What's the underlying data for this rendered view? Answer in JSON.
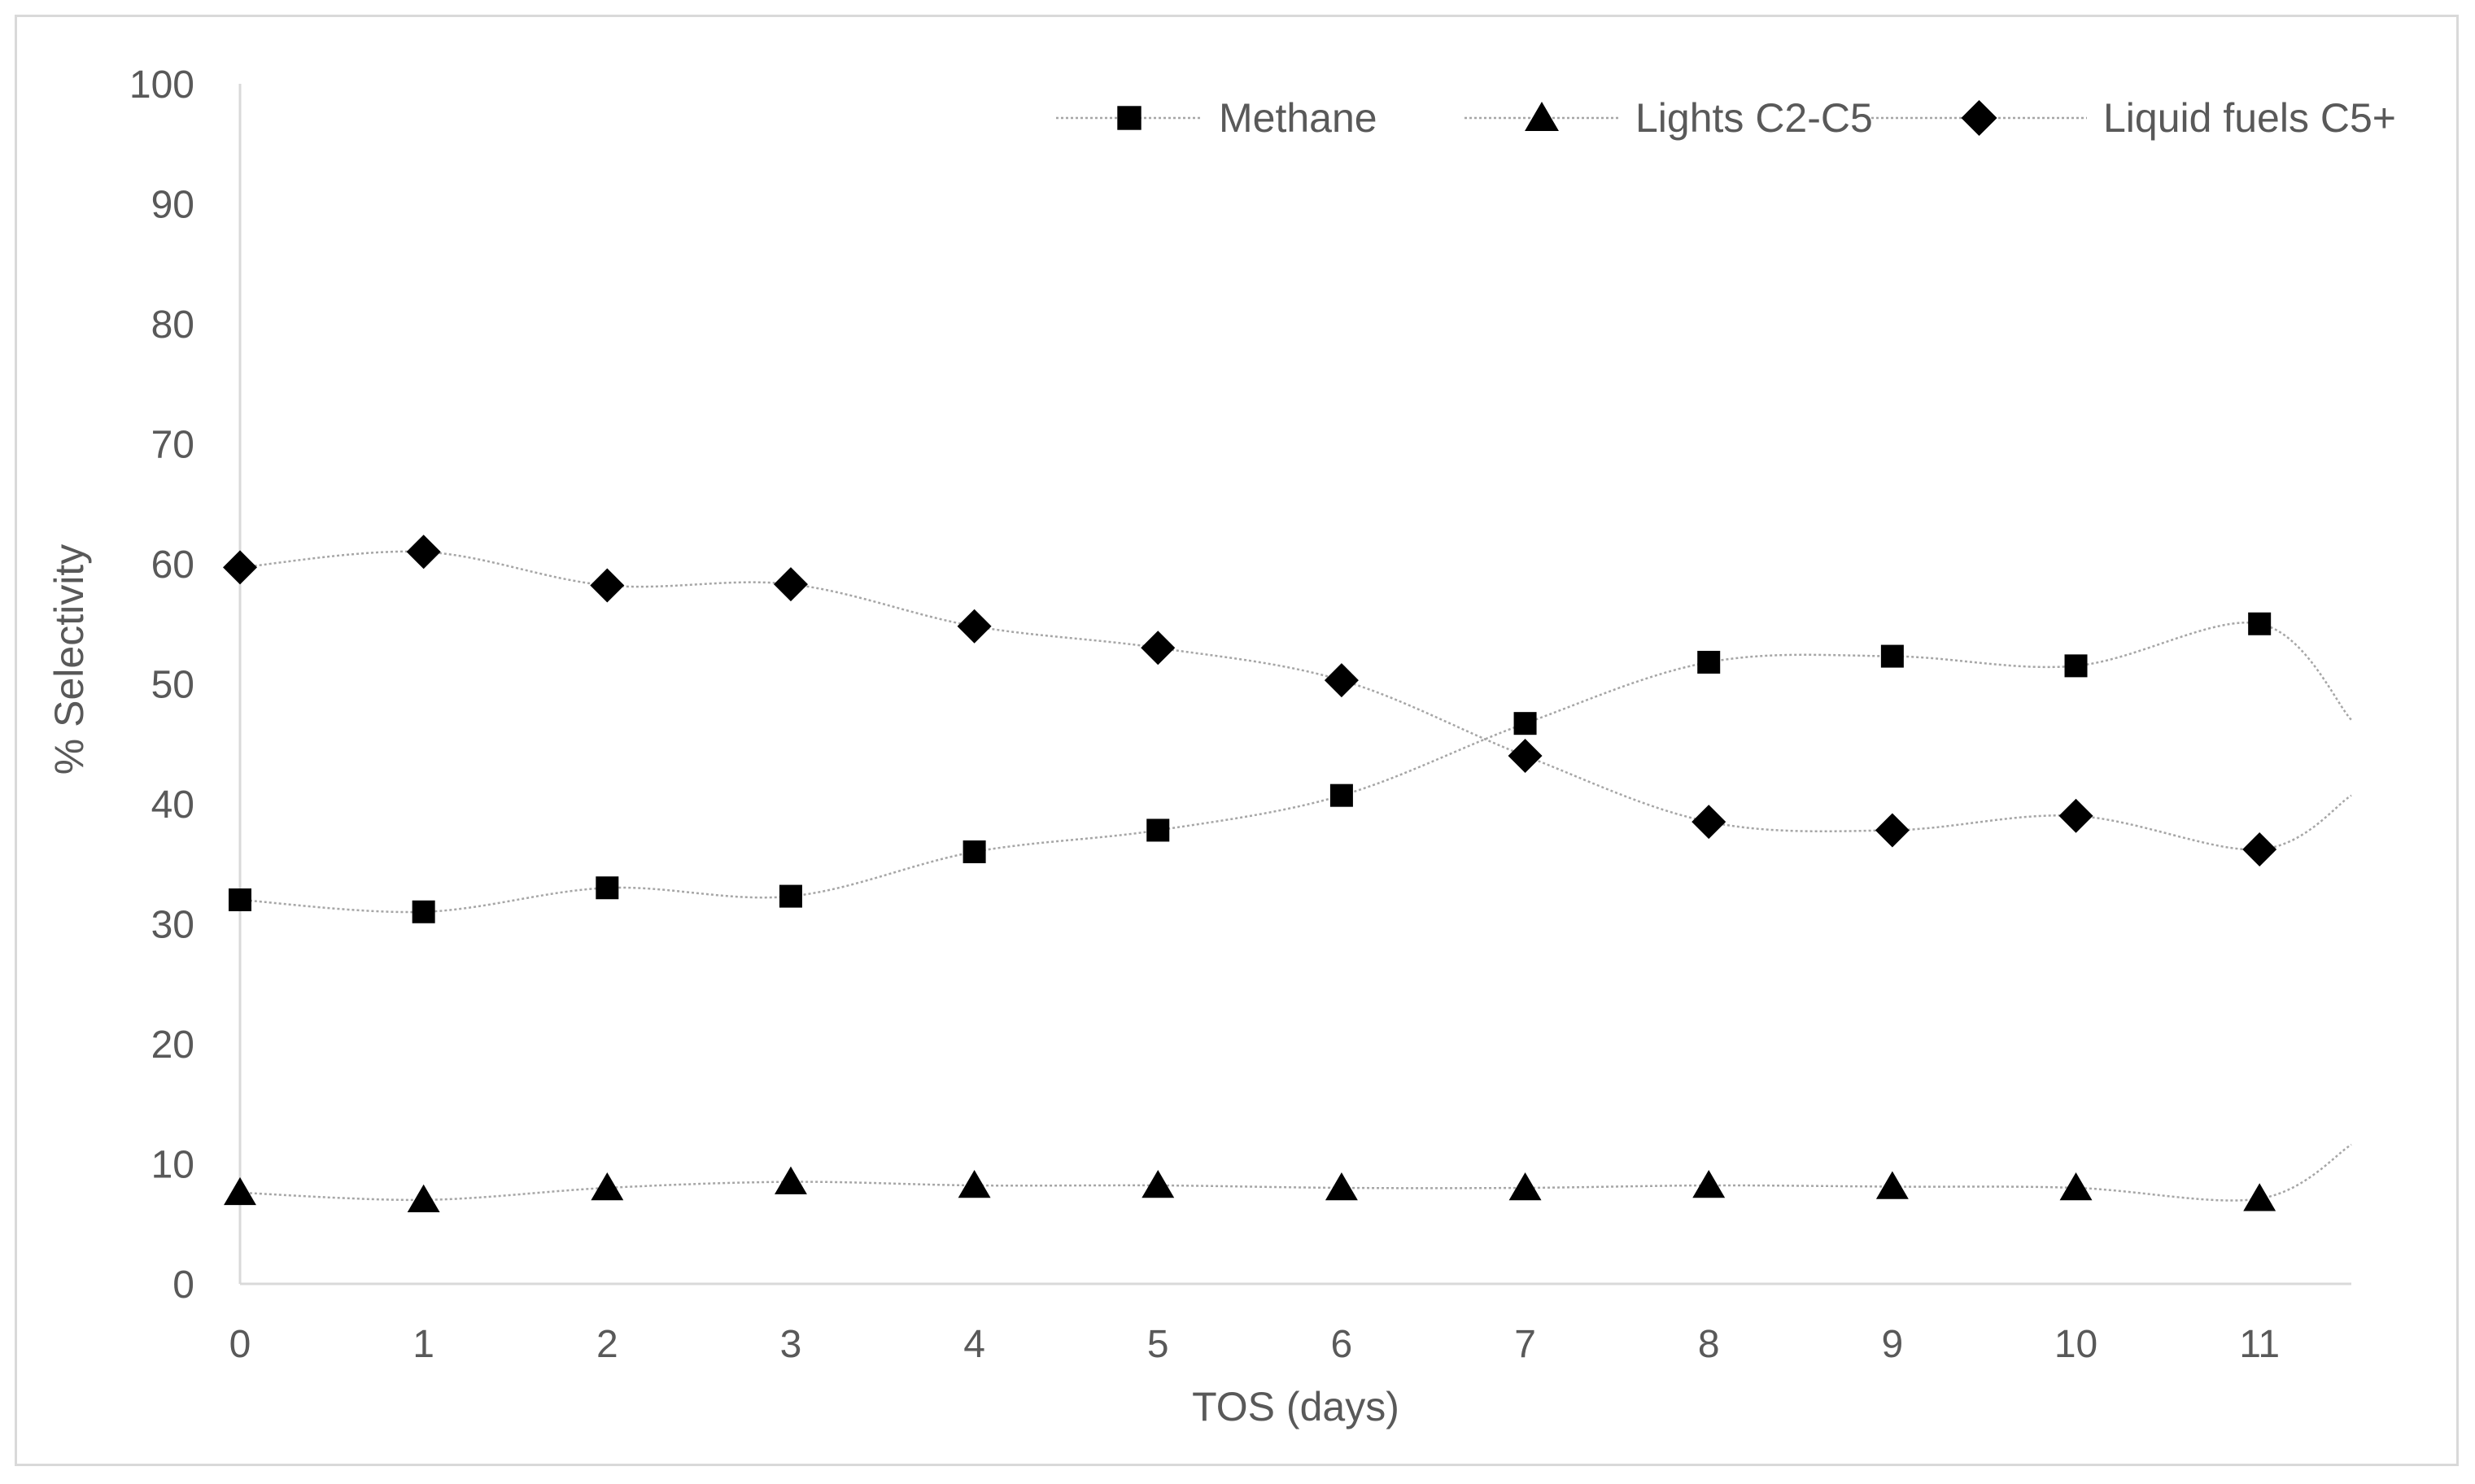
{
  "chart_data": {
    "type": "line",
    "title": "",
    "xlabel": "TOS (days)",
    "ylabel": "% Selectivity",
    "x": [
      0,
      1,
      2,
      3,
      4,
      5,
      6,
      7,
      8,
      9,
      10,
      11
    ],
    "x_ticks": [
      "0",
      "1",
      "2",
      "3",
      "4",
      "5",
      "6",
      "7",
      "8",
      "9",
      "10",
      "11"
    ],
    "y_ticks": [
      "0",
      "10",
      "20",
      "30",
      "40",
      "50",
      "60",
      "70",
      "80",
      "90",
      "100"
    ],
    "xlim": [
      0,
      11.5
    ],
    "ylim": [
      0,
      100
    ],
    "grid": false,
    "legend_position": "top-right",
    "line_color": "#a6a6a6",
    "marker_color": "#000000",
    "series": [
      {
        "name": "Methane",
        "marker": "square",
        "values": [
          32,
          31,
          33,
          32.3,
          36,
          37.8,
          40.7,
          46.7,
          51.8,
          52.3,
          51.5,
          55
        ]
      },
      {
        "name": "Lights C2-C5",
        "marker": "triangle",
        "values": [
          7.6,
          7,
          8,
          8.5,
          8.2,
          8.2,
          8,
          8,
          8.2,
          8.1,
          8,
          7.1
        ]
      },
      {
        "name": "Liquid fuels C5+",
        "marker": "diamond",
        "values": [
          59.7,
          61,
          58.2,
          58.3,
          54.8,
          53,
          50.3,
          44,
          38.5,
          37.8,
          39,
          36.2
        ]
      }
    ]
  }
}
